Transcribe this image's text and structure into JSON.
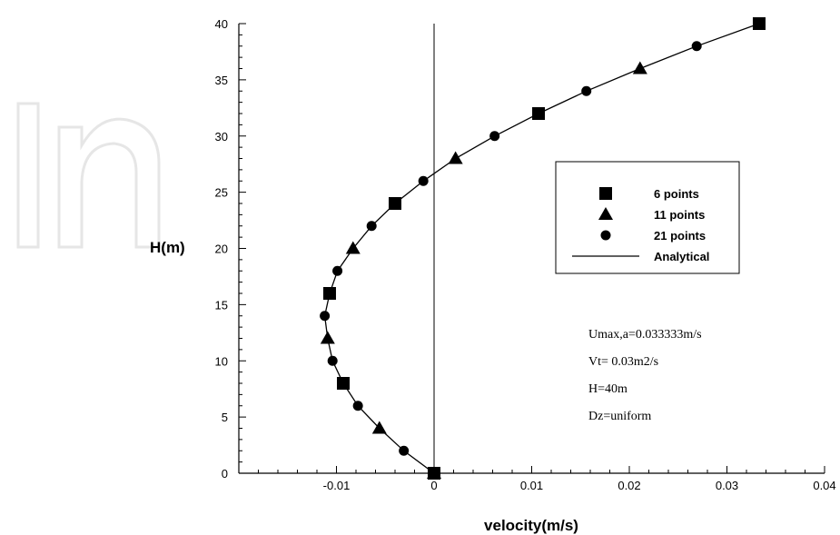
{
  "chart_data": {
    "type": "scatter",
    "title": "",
    "xlabel": "velocity(m/s)",
    "ylabel": "H(m)",
    "xlim": [
      -0.02,
      0.04
    ],
    "ylim": [
      0,
      40
    ],
    "x_ticks": [
      -0.01,
      0,
      0.01,
      0.02,
      0.03,
      0.04
    ],
    "x_tick_labels": [
      "-0.01",
      "0",
      "0.01",
      "0.02",
      "0.03",
      "0.04"
    ],
    "y_ticks": [
      0,
      5,
      10,
      15,
      20,
      25,
      30,
      35,
      40
    ],
    "y_tick_labels": [
      "0",
      "5",
      "10",
      "15",
      "20",
      "25",
      "30",
      "35",
      "40"
    ],
    "grid": false,
    "legend_position": "right",
    "series": [
      {
        "name": "6 points",
        "marker": "square",
        "points": [
          [
            0.0,
            0
          ],
          [
            -0.0093,
            8
          ],
          [
            -0.0107,
            16
          ],
          [
            -0.004,
            24
          ],
          [
            0.0107,
            32
          ],
          [
            0.0333,
            40
          ]
        ]
      },
      {
        "name": "11 points",
        "marker": "triangle",
        "points": [
          [
            0.0,
            0
          ],
          [
            -0.0056,
            4
          ],
          [
            -0.0109,
            12
          ],
          [
            -0.0083,
            20
          ],
          [
            0.0022,
            28
          ],
          [
            0.0211,
            36
          ]
        ]
      },
      {
        "name": "21 points",
        "marker": "circle",
        "points": [
          [
            0.0,
            0
          ],
          [
            -0.0031,
            2
          ],
          [
            -0.0078,
            6
          ],
          [
            -0.0104,
            10
          ],
          [
            -0.0112,
            14
          ],
          [
            -0.0099,
            18
          ],
          [
            -0.0064,
            22
          ],
          [
            -0.0011,
            26
          ],
          [
            0.0062,
            30
          ],
          [
            0.0156,
            34
          ],
          [
            0.0269,
            38
          ]
        ]
      },
      {
        "name": "Analytical",
        "marker": "line",
        "points": [
          [
            0.0,
            0
          ],
          [
            -0.0031,
            2
          ],
          [
            -0.0056,
            4
          ],
          [
            -0.0078,
            6
          ],
          [
            -0.0093,
            8
          ],
          [
            -0.0104,
            10
          ],
          [
            -0.0109,
            12
          ],
          [
            -0.0112,
            14
          ],
          [
            -0.0107,
            16
          ],
          [
            -0.0099,
            18
          ],
          [
            -0.0083,
            20
          ],
          [
            -0.0064,
            22
          ],
          [
            -0.004,
            24
          ],
          [
            -0.0011,
            26
          ],
          [
            0.0022,
            28
          ],
          [
            0.0062,
            30
          ],
          [
            0.0107,
            32
          ],
          [
            0.0156,
            34
          ],
          [
            0.0211,
            36
          ],
          [
            0.0269,
            38
          ],
          [
            0.0333,
            40
          ]
        ]
      }
    ],
    "annotations": [
      "Umax,a=0.033333m/s",
      "Vt= 0.03m2/s",
      "H=40m",
      "Dz=uniform"
    ]
  }
}
